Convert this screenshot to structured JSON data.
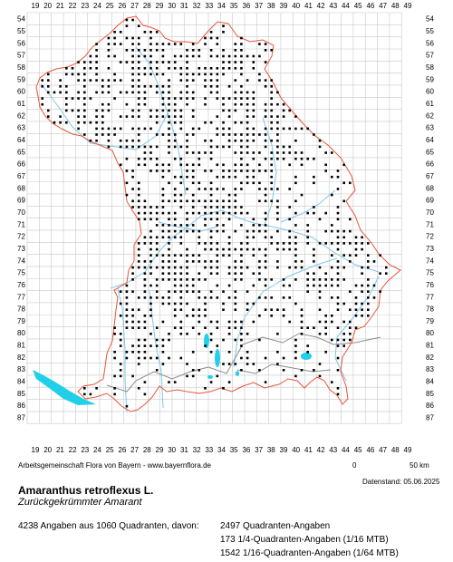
{
  "map": {
    "x_labels": [
      "19",
      "20",
      "21",
      "22",
      "23",
      "24",
      "25",
      "26",
      "27",
      "28",
      "29",
      "30",
      "31",
      "32",
      "33",
      "34",
      "35",
      "36",
      "37",
      "38",
      "39",
      "40",
      "41",
      "42",
      "43",
      "44",
      "45",
      "46",
      "47",
      "48",
      "49"
    ],
    "y_labels": [
      "54",
      "55",
      "56",
      "57",
      "58",
      "59",
      "60",
      "61",
      "62",
      "63",
      "64",
      "65",
      "66",
      "67",
      "68",
      "69",
      "70",
      "71",
      "72",
      "73",
      "74",
      "75",
      "76",
      "77",
      "78",
      "79",
      "80",
      "81",
      "82",
      "83",
      "84",
      "85",
      "86",
      "87"
    ],
    "colors": {
      "grid": "#c8c8c8",
      "border": "#e8553a",
      "district": "#8c8c8c",
      "river": "#7fc6ea",
      "lake": "#20d0e8",
      "dot": "#000000"
    }
  },
  "scale": {
    "zero": "0",
    "label": "50 km"
  },
  "credit": "Arbeitsgemeinschaft Flora von Bayern - www.bayernflora.de",
  "date": "Datenstand: 05.06.2025",
  "species": {
    "name": "Amaranthus retroflexus L.",
    "german": "Zurückgekrümmter Amarant"
  },
  "summary": "4238 Angaben aus 1060 Quadranten, davon:",
  "stats": [
    "2497 Quadranten-Angaben",
    "173 1/4-Quadranten-Angaben (1/16 MTB)",
    "1542 1/16-Quadranten-Angaben (1/64 MTB)"
  ]
}
